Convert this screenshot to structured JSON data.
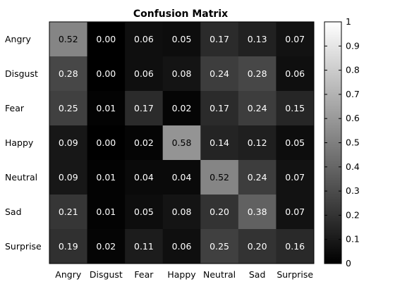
{
  "chart_data": {
    "type": "heatmap",
    "title": "Confusion Matrix",
    "rows": [
      "Angry",
      "Disgust",
      "Fear",
      "Happy",
      "Neutral",
      "Sad",
      "Surprise"
    ],
    "columns": [
      "Angry",
      "Disgust",
      "Fear",
      "Happy",
      "Neutral",
      "Sad",
      "Surprise"
    ],
    "values": [
      [
        0.52,
        0.0,
        0.06,
        0.05,
        0.17,
        0.13,
        0.07
      ],
      [
        0.28,
        0.0,
        0.06,
        0.08,
        0.24,
        0.28,
        0.06
      ],
      [
        0.25,
        0.01,
        0.17,
        0.02,
        0.17,
        0.24,
        0.15
      ],
      [
        0.09,
        0.0,
        0.02,
        0.58,
        0.14,
        0.12,
        0.05
      ],
      [
        0.09,
        0.01,
        0.04,
        0.04,
        0.52,
        0.24,
        0.07
      ],
      [
        0.21,
        0.01,
        0.05,
        0.08,
        0.2,
        0.38,
        0.07
      ],
      [
        0.19,
        0.02,
        0.11,
        0.06,
        0.25,
        0.2,
        0.16
      ]
    ],
    "value_format_decimals": 2,
    "colormap": "gray",
    "colorbar": {
      "range": [
        0,
        1
      ],
      "ticks": [
        "0",
        "0.1",
        "0.2",
        "0.3",
        "0.4",
        "0.5",
        "0.6",
        "0.7",
        "0.8",
        "0.9",
        "1"
      ]
    },
    "colors": {
      "text_on_dark": "#ffffff",
      "text_on_light": "#000000",
      "axis": "#000000"
    }
  }
}
